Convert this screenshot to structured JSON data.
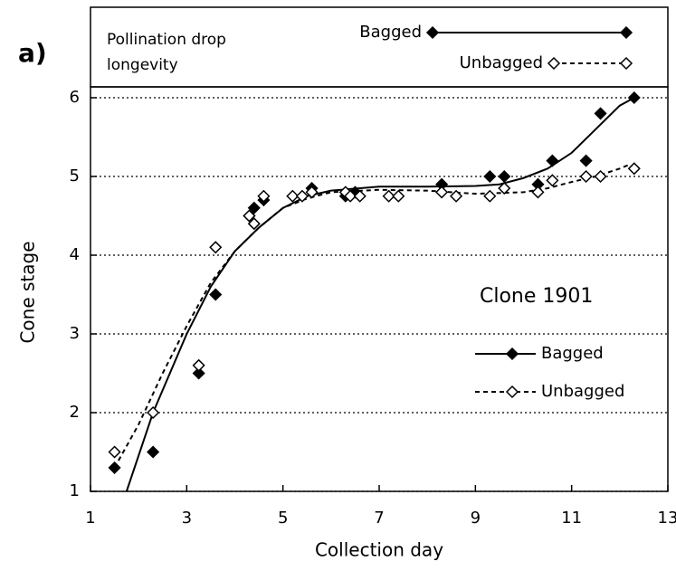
{
  "chart_data": {
    "type": "scatter",
    "panel_label": "a)",
    "legend_title": [
      "Pollination drop",
      "longevity"
    ],
    "annotation": "Clone 1901",
    "xlabel": "Collection day",
    "ylabel": "Cone stage",
    "xlim": [
      1,
      13
    ],
    "ylim": [
      1,
      6
    ],
    "xticks": [
      1,
      3,
      5,
      7,
      9,
      11,
      13
    ],
    "yticks": [
      1,
      2,
      3,
      4,
      5,
      6
    ],
    "grid": true,
    "series": [
      {
        "name": "Bagged",
        "color": "#000000",
        "marker_fill": "#000000",
        "line_style": "solid",
        "x": [
          1.5,
          2.3,
          3.25,
          3.6,
          4.3,
          4.4,
          4.6,
          5.6,
          6.3,
          6.5,
          8.3,
          9.3,
          9.6,
          10.3,
          10.6,
          11.3,
          11.6,
          12.3
        ],
        "values": [
          1.3,
          1.5,
          2.5,
          3.5,
          4.5,
          4.6,
          4.7,
          4.85,
          4.75,
          4.8,
          4.9,
          5.0,
          5.0,
          4.9,
          5.2,
          5.2,
          5.8,
          6.0
        ],
        "fit": {
          "x": [
            1.75,
            2.3,
            3,
            3.5,
            4,
            4.5,
            5,
            5.5,
            6,
            7,
            8,
            9,
            9.5,
            10,
            10.5,
            11,
            11.5,
            12,
            12.3
          ],
          "values": [
            1.0,
            2.0,
            3.0,
            3.6,
            4.05,
            4.35,
            4.6,
            4.75,
            4.82,
            4.87,
            4.87,
            4.88,
            4.9,
            4.98,
            5.1,
            5.3,
            5.6,
            5.9,
            6.0
          ]
        }
      },
      {
        "name": "Unbagged",
        "color": "#000000",
        "marker_fill": "#ffffff",
        "line_style": "dashed",
        "x": [
          1.5,
          2.3,
          3.25,
          3.6,
          4.3,
          4.4,
          4.6,
          5.2,
          5.4,
          5.6,
          6.3,
          6.4,
          6.6,
          7.2,
          7.4,
          8.3,
          8.6,
          9.3,
          9.6,
          10.3,
          10.6,
          11.3,
          11.6,
          12.3
        ],
        "values": [
          1.5,
          2.0,
          2.6,
          4.1,
          4.5,
          4.4,
          4.75,
          4.75,
          4.75,
          4.8,
          4.8,
          4.75,
          4.75,
          4.75,
          4.75,
          4.8,
          4.75,
          4.75,
          4.85,
          4.8,
          4.95,
          5.0,
          5.0,
          5.1
        ],
        "fit": {
          "x": [
            1.5,
            2,
            2.5,
            3,
            3.5,
            4,
            4.5,
            5,
            5.5,
            6,
            7,
            8,
            9,
            10,
            10.5,
            11,
            11.5,
            12,
            12.2
          ],
          "values": [
            1.3,
            1.85,
            2.5,
            3.1,
            3.65,
            4.05,
            4.35,
            4.6,
            4.72,
            4.8,
            4.83,
            4.82,
            4.78,
            4.8,
            4.85,
            4.93,
            5.0,
            5.1,
            5.15
          ]
        }
      }
    ]
  }
}
